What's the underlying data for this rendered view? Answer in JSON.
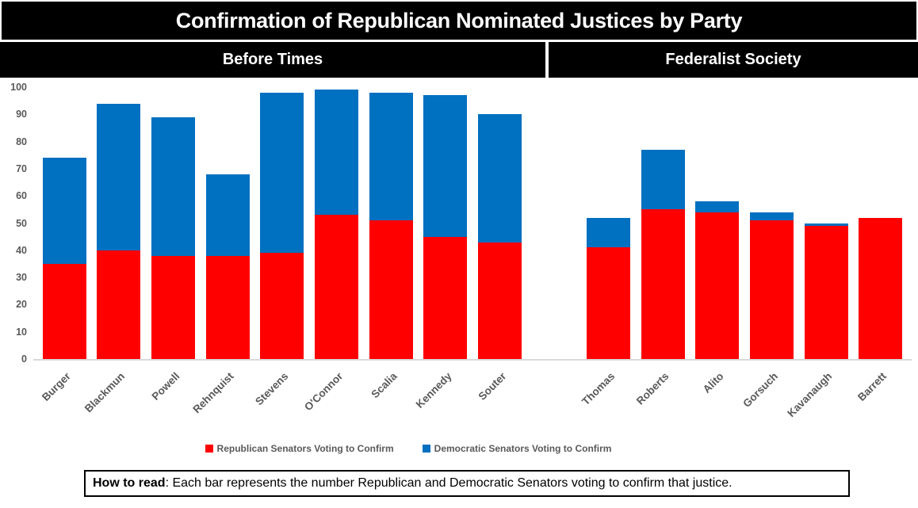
{
  "title": "Confirmation of Republican Nominated Justices by Party",
  "sections": {
    "left": "Before Times",
    "right": "Federalist Society"
  },
  "legend": {
    "republican": "Republican Senators Voting to Confirm",
    "democratic": "Democratic Senators Voting to Confirm"
  },
  "footer": {
    "lead": "How to read",
    "text": ": Each bar represents the number Republican and Democratic Senators voting to confirm that justice."
  },
  "colors": {
    "republican": "#FF0000",
    "democratic": "#0070C0",
    "axis_text": "#595959",
    "baseline": "#D9D9D9",
    "header_bg": "#000000",
    "header_text": "#FFFFFF"
  },
  "chart_data": {
    "type": "bar",
    "stacked": true,
    "title": "Confirmation of Republican Nominated Justices by Party",
    "ylim": [
      0,
      100
    ],
    "yticks": [
      0,
      10,
      20,
      30,
      40,
      50,
      60,
      70,
      80,
      90,
      100
    ],
    "grid": false,
    "legend_position": "bottom",
    "groups": [
      {
        "label": "Before Times",
        "categories": [
          "Burger",
          "Blackmun",
          "Powell",
          "Rehnquist",
          "Stevens",
          "O'Connor",
          "Scalia",
          "Kennedy",
          "Souter"
        ]
      },
      {
        "label": "Federalist Society",
        "categories": [
          "Thomas",
          "Roberts",
          "Alito",
          "Gorsuch",
          "Kavanaugh",
          "Barrett"
        ]
      }
    ],
    "categories": [
      "Burger",
      "Blackmun",
      "Powell",
      "Rehnquist",
      "Stevens",
      "O'Connor",
      "Scalia",
      "Kennedy",
      "Souter",
      "Thomas",
      "Roberts",
      "Alito",
      "Gorsuch",
      "Kavanaugh",
      "Barrett"
    ],
    "series": [
      {
        "name": "Republican Senators Voting to Confirm",
        "color": "#FF0000",
        "values": [
          35,
          40,
          38,
          38,
          39,
          53,
          51,
          45,
          43,
          41,
          55,
          54,
          51,
          49,
          52
        ]
      },
      {
        "name": "Democratic Senators Voting to Confirm",
        "color": "#0070C0",
        "values": [
          39,
          54,
          51,
          30,
          59,
          46,
          47,
          52,
          47,
          11,
          22,
          4,
          3,
          1,
          0
        ]
      }
    ],
    "totals": [
      74,
      94,
      89,
      68,
      98,
      99,
      98,
      97,
      90,
      52,
      77,
      58,
      54,
      50,
      52
    ],
    "gap_after_category": "Souter"
  }
}
